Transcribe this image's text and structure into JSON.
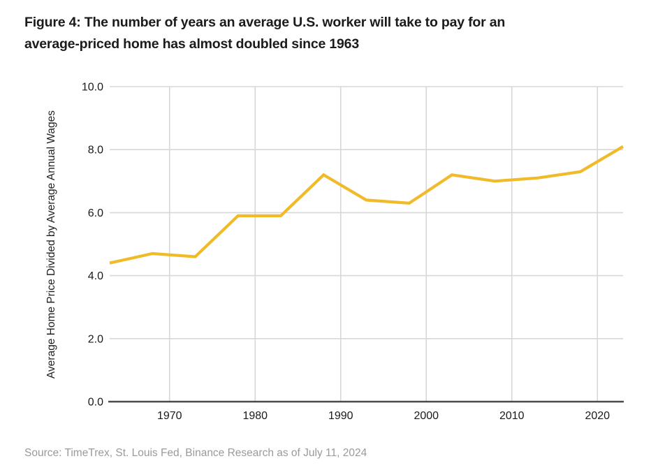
{
  "figure": {
    "title_line1": "Figure 4: The number of years an average U.S. worker will take to pay for an",
    "title_line2": "average-priced home has almost doubled since 1963",
    "source": "Source: TimeTrex, St. Louis Fed, Binance Research as of July 11, 2024"
  },
  "chart_data": {
    "type": "line",
    "title": "Figure 4: The number of years an average U.S. worker will take to pay for an average-priced home has almost doubled since 1963",
    "xlabel": "",
    "ylabel": "Average Home Price Divided by Average Annual Wages",
    "x": [
      1963,
      1968,
      1973,
      1978,
      1983,
      1988,
      1993,
      1998,
      2003,
      2008,
      2013,
      2018,
      2023
    ],
    "values": [
      4.4,
      4.7,
      4.6,
      5.9,
      5.9,
      7.2,
      6.4,
      6.3,
      7.2,
      7.0,
      7.1,
      7.3,
      8.1
    ],
    "xlim": [
      1963,
      2023
    ],
    "ylim": [
      0,
      10
    ],
    "x_ticks": [
      {
        "value": 1970,
        "label": "1970"
      },
      {
        "value": 1980,
        "label": "1980"
      },
      {
        "value": 1990,
        "label": "1990"
      },
      {
        "value": 2000,
        "label": "2000"
      },
      {
        "value": 2010,
        "label": "2010"
      },
      {
        "value": 2020,
        "label": "2020"
      }
    ],
    "y_ticks": [
      {
        "value": 0,
        "label": "0.0"
      },
      {
        "value": 2,
        "label": "2.0"
      },
      {
        "value": 4,
        "label": "4.0"
      },
      {
        "value": 6,
        "label": "6.0"
      },
      {
        "value": 8,
        "label": "8.0"
      },
      {
        "value": 10,
        "label": "10.0"
      }
    ],
    "grid": true,
    "legend_position": "none",
    "colors": {
      "line": "#F0BA28",
      "grid": "#D7D7D7",
      "axis": "#4A4A4A",
      "tick_text": "#1A1A1A"
    }
  }
}
